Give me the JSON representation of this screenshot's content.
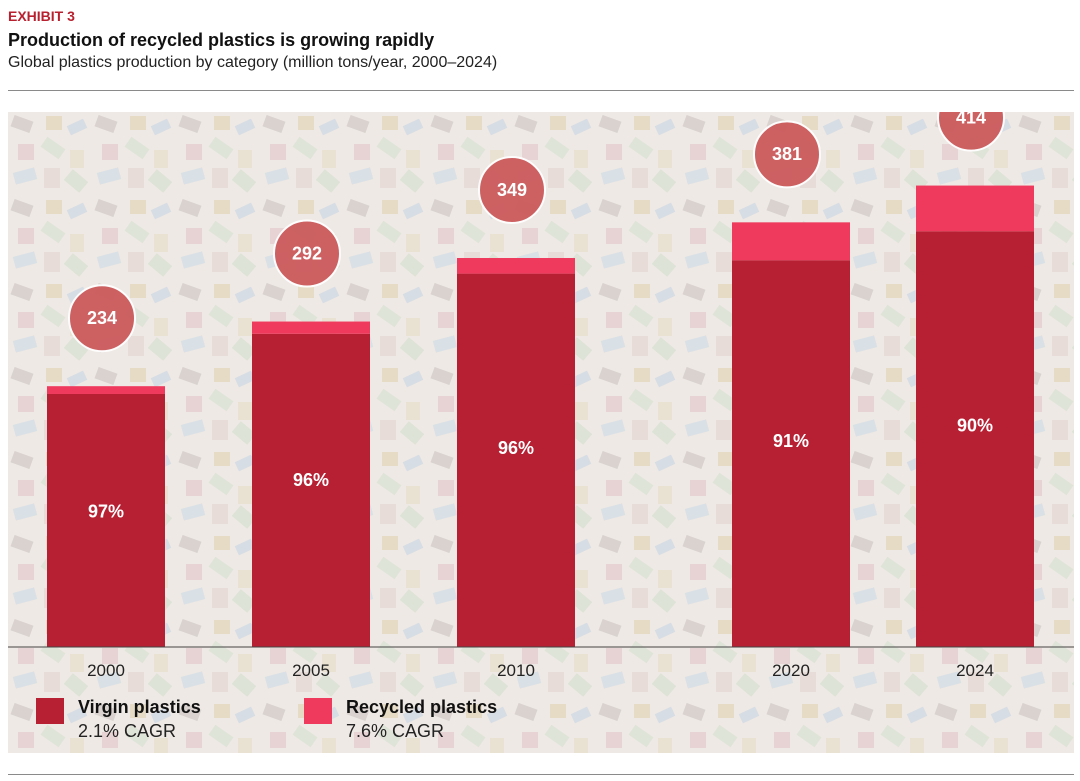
{
  "header": {
    "exhibit": "EXHIBIT 3",
    "title": "Production of recycled plastics is growing rapidly",
    "subtitle": "Global plastics production by category (million tons/year, 2000–2024)"
  },
  "colors": {
    "virgin": "#b71f32",
    "recycled": "#ef3a5d",
    "bubble": "#cc5a5c",
    "bubble_border": "#ffffff"
  },
  "chart_data": {
    "type": "bar",
    "stacked": true,
    "categories": [
      "2000",
      "2005",
      "2010",
      "2020",
      "2024"
    ],
    "totals": [
      234,
      292,
      349,
      381,
      414
    ],
    "series": [
      {
        "name": "Virgin plastics",
        "note": "2.1% CAGR",
        "values": [
          227,
          281,
          335,
          347,
          373
        ],
        "share_labels": [
          "97%",
          "96%",
          "96%",
          "91%",
          "90%"
        ]
      },
      {
        "name": "Recycled plastics",
        "note": "7.6% CAGR",
        "values": [
          7,
          11,
          14,
          34,
          41
        ]
      }
    ],
    "ylim": [
      0,
      480
    ],
    "legend": "bottom-left",
    "grid": false
  }
}
